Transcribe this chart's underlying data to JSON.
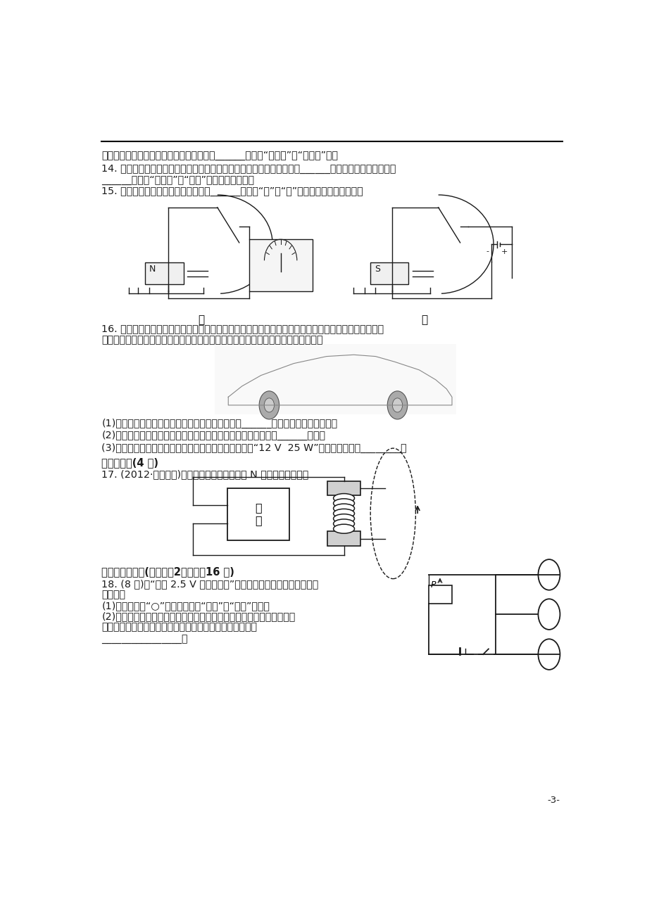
{
  "bg_color": "#ffffff",
  "page_width": 9.2,
  "page_height": 13.02,
  "label_jia": "甲",
  "label_yi": "乙",
  "line1": "工作状态进行远距离遥控，遥控器发出的是______（选填“电磁波”或“超声波”）。",
  "line2": "14. 手机已经成为我们生活中不可缺少的通信工具，在使用过程中电池将______能转化为电能，它是利用",
  "line3": "______（选填“电磁波”或“声波”）来传递信息的。",
  "line4": "15. 要研究电磁感应现象，可以选用图______（选填“甲”或“乙”）所示的装置进行实验。",
  "line16": "16. 小洋家买了一辆崭新漂亮的小汽车，她高兴极了，把车的里里外外都观察了个够。通过观察，小洋发",
  "line16b": "现小汽车的许多部件都用到了物理知识，下面是她列出的几项，请你帮她补充完整。",
  "line_q1": "(1)小汽车的轮胎上有许多凹凸不平的花纹，是为了______轮胎与地面间的摩擦力；",
  "line_q2": "(2)小汽车的发动机是汽油机，从能源可否再生的角度看，汽油是______能源；",
  "line_q3": "(3)她查阅小汽车的说明书，发现汽车前灯灯泡的规格是“12 V  25 W”，其物理意义是________。",
  "line_s3": "三、作图题(4 分)",
  "line_17": "17. (2012·敖节中考)在图中标出通电螺旋管的 N 极和电源的正极。",
  "line_s4": "四、实验探究题(本大题共2小题，入16 分)",
  "line_18": "18. (8 分)在“测定 2.5 V 小灯泡功率”的实验中，小红设计了如图所示",
  "line_18b": "的电路。",
  "line_18_1": "(1)请在图中的“○”内填入合适的“灯泡”和“电表”符号。",
  "line_18_2": "(2)小红按电路图连接电路，进行实验，测得的数据如表所示，断开开关",
  "line_18_2b": "时，发现电表如图所示，其中电流表出现这种现象的原因是",
  "line_blank": "________________。",
  "page_num": "-3-"
}
